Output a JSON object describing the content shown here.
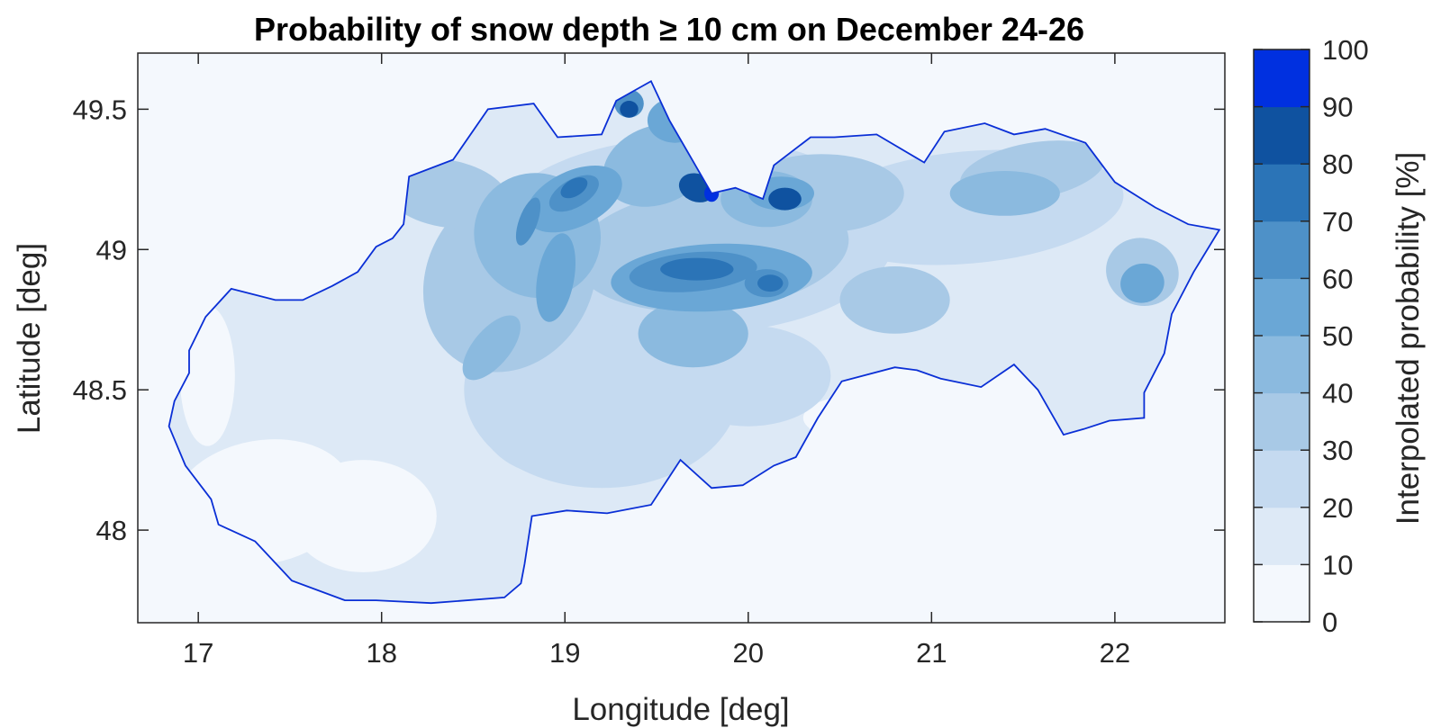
{
  "title": "Probability of snow depth ≥ 10 cm on December 24-26",
  "xlabel": "Longitude [deg]",
  "ylabel": "Latitude [deg]",
  "colorbar": {
    "label": "Interpolated probability [%]",
    "ticks": [
      "0",
      "10",
      "20",
      "30",
      "40",
      "50",
      "60",
      "70",
      "80",
      "90",
      "100"
    ],
    "colors": [
      "#f4f8fd",
      "#dde9f6",
      "#c5daf0",
      "#a8c9e6",
      "#8bbadf",
      "#6aa7d6",
      "#4e91c8",
      "#2b74b7",
      "#0f52a0",
      "#0030e0"
    ]
  },
  "map": {
    "region": "Slovakia",
    "xlim": [
      16.67,
      22.6
    ],
    "ylim": [
      47.67,
      49.7
    ],
    "x_ticks": [
      "17",
      "18",
      "19",
      "20",
      "21",
      "22"
    ],
    "y_ticks": [
      "48",
      "48.5",
      "49",
      "49.5"
    ],
    "border_color": "#0a2fd6",
    "background_color": "#f4f8fd"
  }
}
